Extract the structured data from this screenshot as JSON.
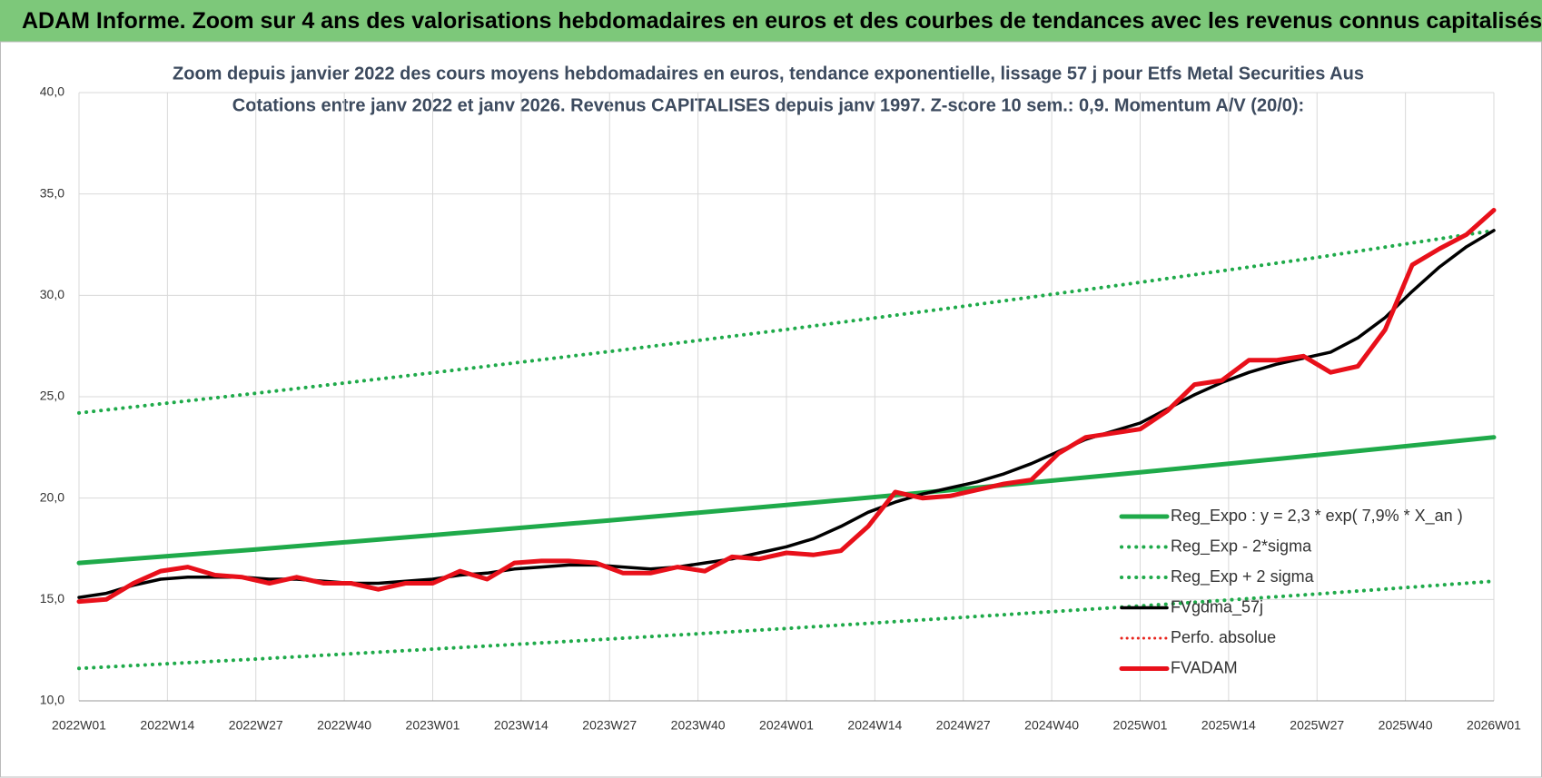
{
  "header": {
    "title": "ADAM Informe. Zoom sur 4 ans des valorisations hebdomadaires en euros et des courbes de tendances avec les revenus connus capitalisés"
  },
  "chart_data": {
    "type": "line",
    "title": "Zoom depuis janvier 2022 des cours moyens hebdomadaires en euros, tendance exponentielle, lissage 57 j pour Etfs Metal Securities Aus",
    "subtitle": "Cotations entre janv 2022 et janv 2026. Revenus CAPITALISES depuis janv 1997. Z-score 10 sem.: 0,9. Momentum A/V (20/0):",
    "xlim": [
      0,
      208
    ],
    "xticks": [
      {
        "value": 0,
        "label": "2022W01"
      },
      {
        "value": 13,
        "label": "2022W14"
      },
      {
        "value": 26,
        "label": "2022W27"
      },
      {
        "value": 39,
        "label": "2022W40"
      },
      {
        "value": 52,
        "label": "2023W01"
      },
      {
        "value": 65,
        "label": "2023W14"
      },
      {
        "value": 78,
        "label": "2023W27"
      },
      {
        "value": 91,
        "label": "2023W40"
      },
      {
        "value": 104,
        "label": "2024W01"
      },
      {
        "value": 117,
        "label": "2024W14"
      },
      {
        "value": 130,
        "label": "2024W27"
      },
      {
        "value": 143,
        "label": "2024W40"
      },
      {
        "value": 156,
        "label": "2025W01"
      },
      {
        "value": 169,
        "label": "2025W14"
      },
      {
        "value": 182,
        "label": "2025W27"
      },
      {
        "value": 195,
        "label": "2025W40"
      },
      {
        "value": 208,
        "label": "2026W01"
      }
    ],
    "ylim": [
      10,
      40
    ],
    "yticks": [
      {
        "value": 10,
        "label": "10,0"
      },
      {
        "value": 15,
        "label": "15,0"
      },
      {
        "value": 20,
        "label": "20,0"
      },
      {
        "value": 25,
        "label": "25,0"
      },
      {
        "value": 30,
        "label": "30,0"
      },
      {
        "value": 35,
        "label": "35,0"
      },
      {
        "value": 40,
        "label": "40,0"
      }
    ],
    "grid": true,
    "legend": "right",
    "series": [
      {
        "name": "Reg_Expo : y = 2,3 * exp( 7,9% *  X_an )",
        "color": "#1faa4a",
        "style": "solid",
        "width": 5,
        "x": [
          0,
          26,
          52,
          78,
          104,
          130,
          156,
          182,
          208
        ],
        "values": [
          16.8,
          17.47,
          18.17,
          18.9,
          19.66,
          20.45,
          21.27,
          22.12,
          23.0
        ]
      },
      {
        "name": "Reg_Exp - 2*sigma",
        "color": "#1faa4a",
        "style": "dotted",
        "width": 4,
        "x": [
          0,
          26,
          52,
          78,
          104,
          130,
          156,
          182,
          208
        ],
        "values": [
          11.6,
          12.06,
          12.55,
          13.05,
          13.57,
          14.12,
          14.68,
          15.27,
          15.9
        ]
      },
      {
        "name": "Reg_Exp + 2 sigma",
        "color": "#1faa4a",
        "style": "dotted",
        "width": 4,
        "x": [
          0,
          26,
          52,
          78,
          104,
          130,
          156,
          182,
          208
        ],
        "values": [
          24.2,
          25.17,
          26.18,
          27.23,
          28.32,
          29.46,
          30.64,
          31.87,
          33.2
        ]
      },
      {
        "name": "FVgdma_57j",
        "color": "#000000",
        "style": "solid",
        "width": 3.5,
        "x": [
          0,
          4,
          8,
          12,
          16,
          20,
          24,
          28,
          32,
          36,
          40,
          44,
          48,
          52,
          56,
          60,
          64,
          68,
          72,
          76,
          80,
          84,
          88,
          92,
          96,
          100,
          104,
          108,
          112,
          116,
          120,
          124,
          128,
          132,
          136,
          140,
          144,
          148,
          152,
          156,
          160,
          164,
          168,
          172,
          176,
          180,
          184,
          188,
          192,
          196,
          200,
          204,
          208
        ],
        "values": [
          15.1,
          15.3,
          15.7,
          16.0,
          16.1,
          16.1,
          16.1,
          16.0,
          16.0,
          15.9,
          15.8,
          15.8,
          15.9,
          16.0,
          16.2,
          16.3,
          16.5,
          16.6,
          16.7,
          16.7,
          16.6,
          16.5,
          16.6,
          16.8,
          17.0,
          17.3,
          17.6,
          18.0,
          18.6,
          19.3,
          19.8,
          20.2,
          20.5,
          20.8,
          21.2,
          21.7,
          22.3,
          22.9,
          23.3,
          23.7,
          24.4,
          25.1,
          25.7,
          26.2,
          26.6,
          26.9,
          27.2,
          27.9,
          28.9,
          30.2,
          31.4,
          32.4,
          33.2
        ]
      },
      {
        "name": "Perfo. absolue",
        "color": "#e8231c",
        "style": "dotted",
        "width": 3,
        "x": [],
        "values": []
      },
      {
        "name": "FVADAM",
        "color": "#e8101a",
        "style": "solid",
        "width": 5,
        "x": [
          0,
          4,
          8,
          12,
          16,
          20,
          24,
          28,
          32,
          36,
          40,
          44,
          48,
          52,
          56,
          60,
          64,
          68,
          72,
          76,
          80,
          84,
          88,
          92,
          96,
          100,
          104,
          108,
          112,
          116,
          120,
          124,
          128,
          132,
          136,
          140,
          144,
          148,
          152,
          156,
          160,
          164,
          168,
          172,
          176,
          180,
          184,
          188,
          192,
          196,
          200,
          204,
          208
        ],
        "values": [
          14.9,
          15.0,
          15.8,
          16.4,
          16.6,
          16.2,
          16.1,
          15.8,
          16.1,
          15.8,
          15.8,
          15.5,
          15.8,
          15.8,
          16.4,
          16.0,
          16.8,
          16.9,
          16.9,
          16.8,
          16.3,
          16.3,
          16.6,
          16.4,
          17.1,
          17.0,
          17.3,
          17.2,
          17.4,
          18.6,
          20.3,
          20.0,
          20.1,
          20.4,
          20.7,
          20.9,
          22.2,
          23.0,
          23.2,
          23.4,
          24.3,
          25.6,
          25.8,
          26.8,
          26.8,
          27.0,
          26.2,
          26.5,
          28.3,
          31.5,
          32.3,
          33.0,
          34.2
        ]
      }
    ]
  }
}
